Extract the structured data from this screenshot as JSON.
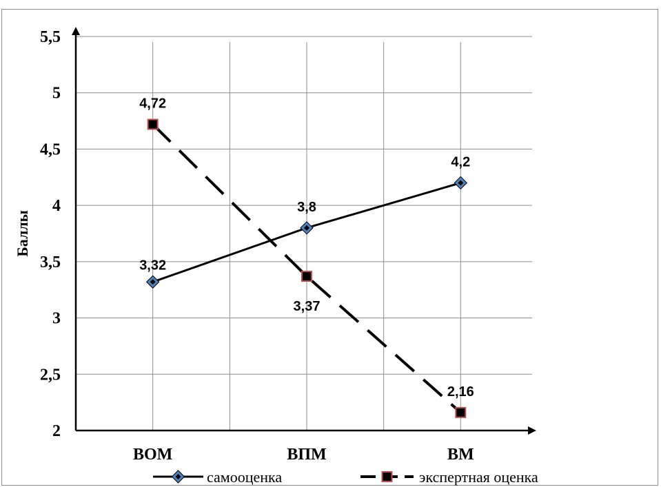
{
  "chart_data": {
    "type": "line",
    "categories": [
      "ВОМ",
      "ВПМ",
      "ВМ"
    ],
    "ylabel": "Баллы",
    "ylim": [
      2,
      5.5
    ],
    "yticks": [
      "2",
      "2,5",
      "3",
      "3,5",
      "4",
      "4,5",
      "5",
      "5,5"
    ],
    "grid": true,
    "legend_position": "bottom",
    "series": [
      {
        "name": "самооценка",
        "values": [
          3.32,
          3.8,
          4.2
        ],
        "labels": [
          "3,32",
          "3,8",
          "4,2"
        ],
        "color": "#000000",
        "marker_color": "#4f81bd",
        "line_style": "solid",
        "marker": "diamond"
      },
      {
        "name": "экспертная оценка",
        "values": [
          4.72,
          3.37,
          2.16
        ],
        "labels": [
          "4,72",
          "3,37",
          "2,16"
        ],
        "color": "#000000",
        "marker_color": "#c0504d",
        "line_style": "dashed",
        "marker": "square"
      }
    ]
  }
}
